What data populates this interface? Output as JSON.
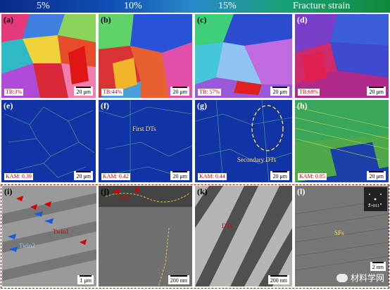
{
  "columns": [
    "5%",
    "10%",
    "15%",
    "Fracture strain"
  ],
  "row1": [
    {
      "label": "(a)",
      "tag": "TB:3%",
      "scale": "20 μm"
    },
    {
      "label": "(b)",
      "tag": "TB:44%",
      "scale": "20 μm"
    },
    {
      "label": "(c)",
      "tag": "TB: 57%",
      "scale": "20 μm"
    },
    {
      "label": "(d)",
      "tag": "TB:69%",
      "scale": "20 μm"
    }
  ],
  "row2": [
    {
      "label": "(e)",
      "tag": "KAM: 0.39",
      "scale": "20 μm"
    },
    {
      "label": "(f)",
      "tag": "KAM: 0.42",
      "scale": "20 μm",
      "annotation": "First DTs"
    },
    {
      "label": "(g)",
      "tag": "KAM: 0.44",
      "scale": "20 μm",
      "annotation": "Secondary DTs"
    },
    {
      "label": "(h)",
      "tag": "KAM: 0.85",
      "scale": "20 μm"
    }
  ],
  "row3": [
    {
      "label": "(i)",
      "scale": "1 μm",
      "annotation1": "Twin1",
      "annotation2": "Twin2"
    },
    {
      "label": "(j)",
      "scale": "200 nm",
      "annotation": "DTs"
    },
    {
      "label": "(k)",
      "scale": "200 nm",
      "annotation": "DTs"
    },
    {
      "label": "(l)",
      "scale": "2 nm",
      "annotation": "SFs",
      "inset_label": "Z=011"
    }
  ],
  "watermark": "材料学网",
  "colors": {
    "kam_bg": "#1233a6",
    "tem_bg": "#7a7a7a",
    "header": "#0f4fb5",
    "accent_red": "#c00000"
  }
}
